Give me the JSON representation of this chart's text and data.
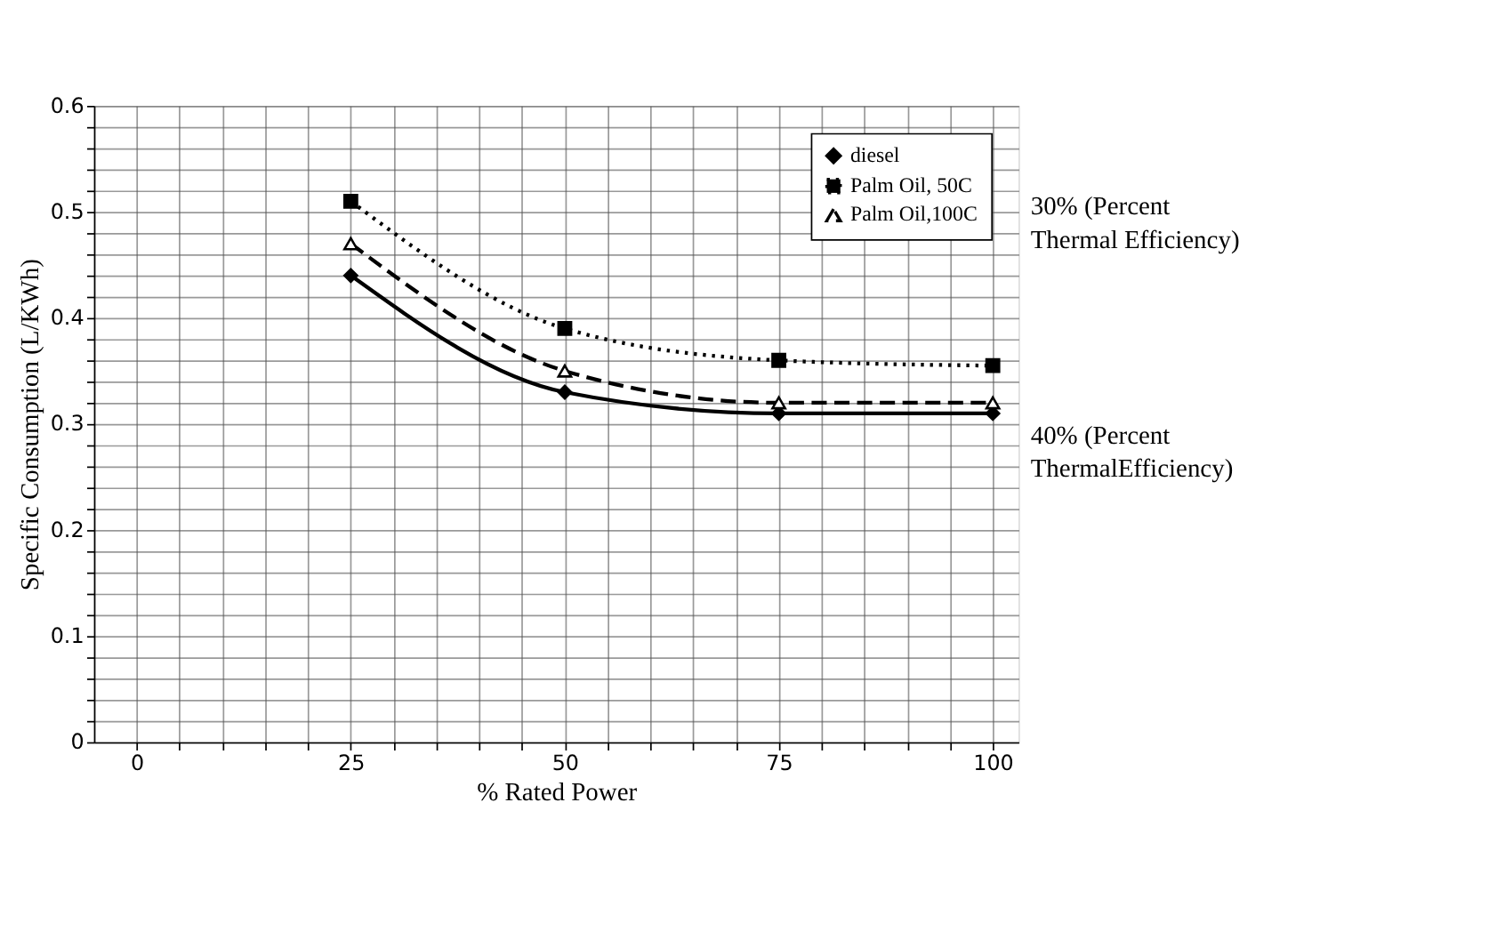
{
  "chart_data": {
    "type": "line",
    "xlabel": "% Rated Power",
    "ylabel": "Specific Consumption (L/KWh)",
    "x": [
      25,
      50,
      75,
      100
    ],
    "series": [
      {
        "name": "diesel",
        "color": "#000000",
        "values": [
          0.44,
          0.33,
          0.31,
          0.31
        ],
        "marker": "diamond",
        "line_style": "solid"
      },
      {
        "name": "Palm Oil, 50C",
        "color": "#000000",
        "values": [
          0.51,
          0.39,
          0.36,
          0.355
        ],
        "marker": "square",
        "line_style": "dotted"
      },
      {
        "name": "Palm Oil,100C",
        "color": "#000000",
        "values": [
          0.47,
          0.35,
          0.32,
          0.32
        ],
        "marker": "triangle",
        "line_style": "dashed"
      }
    ],
    "xlim": [
      -5,
      103
    ],
    "xticks": [
      0,
      {
        "value": 5,
        "label": null
      },
      {
        "value": 10,
        "label": null
      },
      {
        "value": 15,
        "label": null
      },
      {
        "value": 20,
        "label": null
      },
      25,
      {
        "value": 30,
        "label": null
      },
      {
        "value": 35,
        "label": null
      },
      {
        "value": 40,
        "label": null
      },
      {
        "value": 45,
        "label": null
      },
      50,
      {
        "value": 55,
        "label": null
      },
      {
        "value": 60,
        "label": null
      },
      {
        "value": 65,
        "label": null
      },
      {
        "value": 70,
        "label": null
      },
      75,
      {
        "value": 80,
        "label": null
      },
      {
        "value": 85,
        "label": null
      },
      {
        "value": 90,
        "label": null
      },
      {
        "value": 95,
        "label": null
      },
      100
    ],
    "ylim": [
      0,
      0.6
    ],
    "yticks": [
      0,
      {
        "value": 0.02,
        "label": null
      },
      {
        "value": 0.04,
        "label": null
      },
      {
        "value": 0.06,
        "label": null
      },
      {
        "value": 0.08,
        "label": null
      },
      0.1,
      {
        "value": 0.12,
        "label": null
      },
      {
        "value": 0.14,
        "label": null
      },
      {
        "value": 0.16,
        "label": null
      },
      {
        "value": 0.18,
        "label": null
      },
      0.2,
      {
        "value": 0.22,
        "label": null
      },
      {
        "value": 0.24,
        "label": null
      },
      {
        "value": 0.26,
        "label": null
      },
      {
        "value": 0.28,
        "label": null
      },
      0.3,
      {
        "value": 0.32,
        "label": null
      },
      {
        "value": 0.34,
        "label": null
      },
      {
        "value": 0.36,
        "label": null
      },
      {
        "value": 0.38,
        "label": null
      },
      0.4,
      {
        "value": 0.42,
        "label": null
      },
      {
        "value": 0.44,
        "label": null
      },
      {
        "value": 0.46,
        "label": null
      },
      {
        "value": 0.48,
        "label": null
      },
      0.5,
      {
        "value": 0.52,
        "label": null
      },
      {
        "value": 0.54,
        "label": null
      },
      {
        "value": 0.56,
        "label": null
      },
      {
        "value": 0.58,
        "label": null
      },
      0.6
    ],
    "annotations": [
      "30% (Percent Thermal Efficiency)",
      "40% (Percent ThermalEfficiency)"
    ],
    "grid": true,
    "legend": "top right"
  }
}
